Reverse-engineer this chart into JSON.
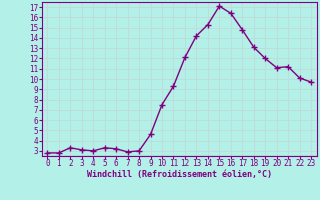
{
  "x": [
    0,
    1,
    2,
    3,
    4,
    5,
    6,
    7,
    8,
    9,
    10,
    11,
    12,
    13,
    14,
    15,
    16,
    17,
    18,
    19,
    20,
    21,
    22,
    23
  ],
  "y": [
    2.8,
    2.8,
    3.3,
    3.1,
    3.0,
    3.3,
    3.2,
    2.9,
    3.0,
    4.6,
    7.5,
    9.3,
    12.1,
    14.2,
    15.3,
    17.1,
    16.4,
    14.8,
    13.1,
    12.0,
    11.1,
    11.2,
    10.1,
    9.7
  ],
  "line_color": "#800080",
  "marker": "+",
  "marker_size": 4,
  "bg_color": "#b2f0e8",
  "grid_color": "#c0ddd8",
  "xlabel": "Windchill (Refroidissement éolien,°C)",
  "xlabel_color": "#800080",
  "tick_color": "#800080",
  "ylim": [
    2.5,
    17.5
  ],
  "yticks": [
    3,
    4,
    5,
    6,
    7,
    8,
    9,
    10,
    11,
    12,
    13,
    14,
    15,
    16,
    17
  ],
  "xticks": [
    0,
    1,
    2,
    3,
    4,
    5,
    6,
    7,
    8,
    9,
    10,
    11,
    12,
    13,
    14,
    15,
    16,
    17,
    18,
    19,
    20,
    21,
    22,
    23
  ],
  "xlim": [
    -0.5,
    23.5
  ],
  "line_width": 1.0,
  "tick_fontsize": 5.5,
  "xlabel_fontsize": 6.0
}
